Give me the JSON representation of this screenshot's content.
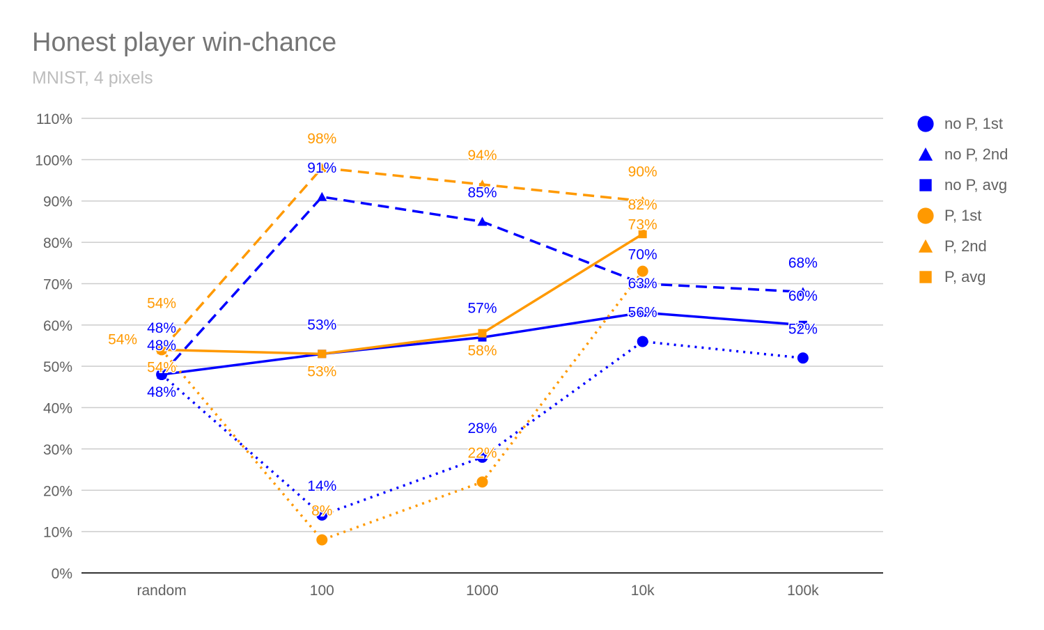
{
  "chart_data": {
    "type": "line",
    "title": "Honest player win-chance",
    "subtitle": "MNIST, 4 pixels",
    "categories": [
      "random",
      "100",
      "1000",
      "10k",
      "100k"
    ],
    "ylim": [
      0,
      110
    ],
    "yticks": [
      0,
      10,
      20,
      30,
      40,
      50,
      60,
      70,
      80,
      90,
      100,
      110
    ],
    "ytick_labels": [
      "0%",
      "10%",
      "20%",
      "30%",
      "40%",
      "50%",
      "60%",
      "70%",
      "80%",
      "90%",
      "100%",
      "110%"
    ],
    "grid": true,
    "legend": "right",
    "series": [
      {
        "name": "no P, 1st",
        "color": "#0000ff",
        "marker": "circle",
        "line": "dotted",
        "values": [
          48,
          14,
          28,
          56,
          52
        ]
      },
      {
        "name": "no P, 2nd",
        "color": "#0000ff",
        "marker": "triangle",
        "line": "dashed",
        "values": [
          48,
          91,
          85,
          70,
          68
        ]
      },
      {
        "name": "no P, avg",
        "color": "#0000ff",
        "marker": "square",
        "line": "solid",
        "values": [
          48,
          53,
          57,
          63,
          60
        ]
      },
      {
        "name": "P, 1st",
        "color": "#ff9900",
        "marker": "circle",
        "line": "dotted",
        "values": [
          54,
          8,
          22,
          73,
          null
        ]
      },
      {
        "name": "P, 2nd",
        "color": "#ff9900",
        "marker": "triangle",
        "line": "dashed",
        "values": [
          54,
          98,
          94,
          90,
          null
        ]
      },
      {
        "name": "P, avg",
        "color": "#ff9900",
        "marker": "square",
        "line": "solid",
        "values": [
          54,
          53,
          58,
          82,
          null
        ]
      }
    ]
  }
}
